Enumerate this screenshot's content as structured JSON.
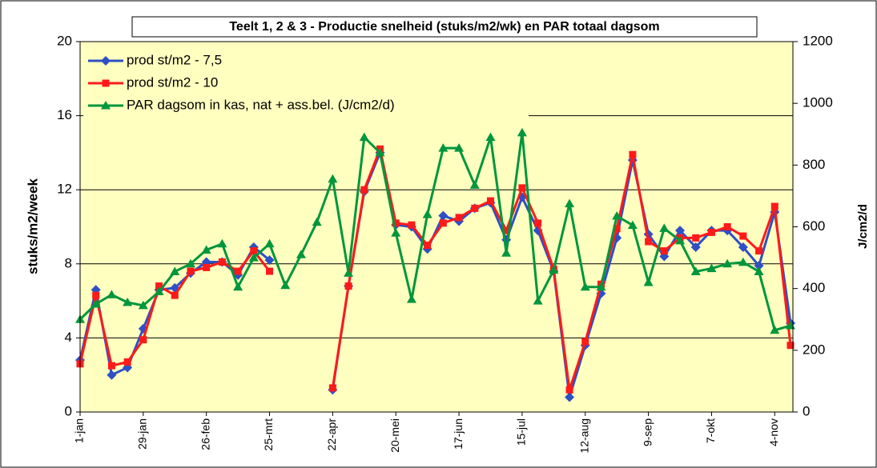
{
  "chart_data": {
    "type": "line",
    "title": "Teelt 1, 2 & 3 - Productie snelheid (stuks/m2/wk) en PAR totaal dagsom",
    "y_label": "stuks/m2/week",
    "y2_label": "J/cm2/d",
    "categories": [
      "1-jan",
      null,
      null,
      null,
      "29-jan",
      null,
      null,
      null,
      "26-feb",
      null,
      null,
      null,
      "25-mrt",
      null,
      null,
      null,
      "22-apr",
      null,
      null,
      null,
      "20-mei",
      null,
      null,
      null,
      "17-jun",
      null,
      null,
      null,
      "15-jul",
      null,
      null,
      null,
      "12-aug",
      null,
      null,
      null,
      "9-sep",
      null,
      null,
      null,
      "7-okt",
      null,
      null,
      null,
      "4-nov",
      null
    ],
    "ylim": [
      0,
      20
    ],
    "yticks": [
      0,
      4,
      8,
      12,
      16,
      20
    ],
    "y2lim": [
      0,
      1200
    ],
    "y2ticks": [
      0,
      200,
      400,
      600,
      800,
      1000,
      1200
    ],
    "grid": true,
    "legend": "upper-left",
    "background": "#ffffc0",
    "series": [
      {
        "name": "prod st/m2 - 7,5",
        "color": "#2f4fc4",
        "marker": "diamond",
        "values": [
          2.8,
          6.6,
          2.0,
          2.4,
          4.5,
          6.6,
          6.7,
          7.5,
          8.1,
          8.1,
          7.4,
          8.9,
          8.2,
          null,
          null,
          null,
          1.2,
          6.8,
          11.9,
          14.0,
          10.1,
          10.0,
          8.8,
          10.6,
          10.3,
          11.0,
          11.3,
          9.3,
          11.6,
          9.8,
          7.6,
          0.8,
          3.6,
          6.4,
          9.4,
          13.6,
          9.6,
          8.4,
          9.8,
          8.9,
          9.8,
          9.8,
          8.9,
          7.9,
          10.8,
          4.8
        ]
      },
      {
        "name": "prod st/m2 - 10",
        "color": "#ff1a1a",
        "marker": "square",
        "values": [
          2.6,
          6.3,
          2.5,
          2.7,
          3.9,
          6.8,
          6.3,
          7.6,
          7.8,
          8.1,
          7.6,
          8.7,
          7.6,
          null,
          null,
          null,
          1.3,
          6.8,
          12.0,
          14.2,
          10.2,
          10.1,
          9.0,
          10.2,
          10.5,
          11.0,
          11.4,
          9.8,
          12.1,
          10.2,
          7.7,
          1.2,
          3.8,
          6.9,
          9.9,
          13.9,
          9.2,
          8.7,
          9.4,
          9.4,
          9.7,
          10.0,
          9.5,
          8.7,
          11.1,
          3.6
        ]
      },
      {
        "name": "PAR dagsom in kas, nat + ass.bel. (J/cm2/d)",
        "color": "#00963c",
        "marker": "triangle",
        "axis": "y2",
        "values": [
          300,
          350,
          380,
          355,
          345,
          390,
          455,
          480,
          525,
          545,
          405,
          500,
          545,
          410,
          510,
          615,
          755,
          450,
          890,
          840,
          580,
          365,
          640,
          855,
          855,
          735,
          890,
          515,
          905,
          360,
          460,
          675,
          405,
          405,
          635,
          605,
          420,
          595,
          555,
          455,
          465,
          480,
          485,
          455,
          265,
          280
        ]
      }
    ]
  }
}
